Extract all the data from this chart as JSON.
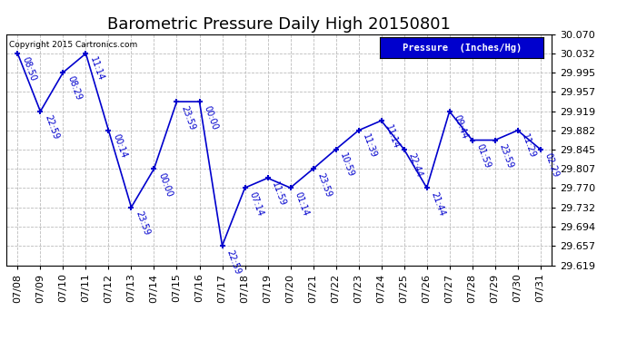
{
  "title": "Barometric Pressure Daily High 20150801",
  "ylabel": "Pressure  (Inches/Hg)",
  "copyright": "Copyright 2015 Cartronics.com",
  "dates": [
    "07/08",
    "07/09",
    "07/10",
    "07/11",
    "07/12",
    "07/13",
    "07/14",
    "07/15",
    "07/16",
    "07/17",
    "07/18",
    "07/19",
    "07/20",
    "07/21",
    "07/22",
    "07/23",
    "07/24",
    "07/25",
    "07/26",
    "07/27",
    "07/28",
    "07/29",
    "07/30",
    "07/31"
  ],
  "x_indices": [
    0,
    1,
    2,
    3,
    4,
    5,
    6,
    7,
    8,
    9,
    10,
    11,
    12,
    13,
    14,
    15,
    16,
    17,
    18,
    19,
    20,
    21,
    22,
    23
  ],
  "values": [
    30.032,
    29.919,
    29.995,
    30.032,
    29.882,
    29.732,
    29.807,
    29.938,
    29.938,
    29.657,
    29.77,
    29.789,
    29.77,
    29.807,
    29.845,
    29.882,
    29.901,
    29.845,
    29.77,
    29.919,
    29.863,
    29.863,
    29.882,
    29.845
  ],
  "times": [
    "08:50",
    "22:59",
    "08:29",
    "11:14",
    "00:14",
    "23:59",
    "00:00",
    "23:59",
    "00:00",
    "22:59",
    "07:14",
    "11:59",
    "01:14",
    "23:59",
    "10:59",
    "11:39",
    "11:14",
    "22:44",
    "21:44",
    "09:44",
    "01:59",
    "23:59",
    "11:29",
    "02:29"
  ],
  "ylim_min": 29.619,
  "ylim_max": 30.07,
  "yticks": [
    29.619,
    29.657,
    29.694,
    29.732,
    29.77,
    29.807,
    29.845,
    29.882,
    29.919,
    29.957,
    29.995,
    30.032,
    30.07
  ],
  "line_color": "#0000CD",
  "marker_color": "#0000CD",
  "bg_color": "#ffffff",
  "grid_color": "#bbbbbb",
  "text_color": "#0000CD",
  "legend_bg": "#0000CD",
  "legend_text_color": "#ffffff",
  "title_fontsize": 13,
  "tick_fontsize": 8,
  "annot_fontsize": 7
}
